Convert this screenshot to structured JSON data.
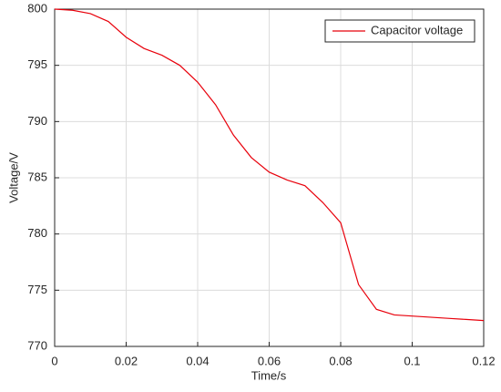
{
  "chart_data": {
    "type": "line",
    "x_label": "Time/s",
    "y_label": "Voltage/V",
    "x": [
      0,
      0.005,
      0.01,
      0.015,
      0.02,
      0.025,
      0.03,
      0.035,
      0.04,
      0.045,
      0.05,
      0.055,
      0.06,
      0.065,
      0.07,
      0.075,
      0.08,
      0.085,
      0.09,
      0.095,
      0.1,
      0.105,
      0.11,
      0.115,
      0.12
    ],
    "series": [
      {
        "name": "Capacitor voltage",
        "color": "#e8000b",
        "values": [
          800,
          799.9,
          799.6,
          798.9,
          797.5,
          796.5,
          795.9,
          795.0,
          793.5,
          791.5,
          788.8,
          786.8,
          785.5,
          784.8,
          784.3,
          782.8,
          781.0,
          775.5,
          773.3,
          772.8,
          772.7,
          772.6,
          772.5,
          772.4,
          772.3
        ]
      }
    ],
    "xlim": [
      0,
      0.12
    ],
    "xticks": [
      0,
      0.02,
      0.04,
      0.06,
      0.08,
      0.1,
      0.12
    ],
    "ylim": [
      770,
      800
    ],
    "yticks": [
      770,
      775,
      780,
      785,
      790,
      795,
      800
    ],
    "grid": true,
    "legend": "upper right"
  }
}
